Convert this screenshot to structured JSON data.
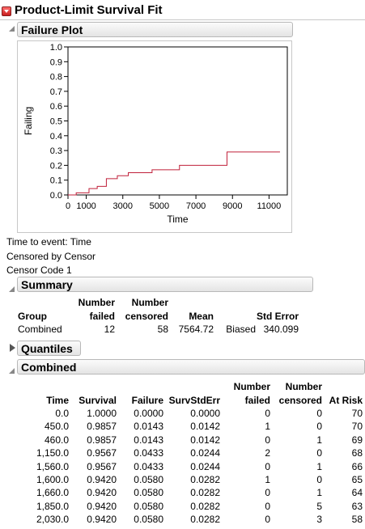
{
  "report": {
    "title": "Product-Limit Survival Fit"
  },
  "failure_plot": {
    "header": "Failure Plot",
    "chart_data": {
      "type": "line",
      "xlabel": "Time",
      "ylabel": "Failing",
      "xlim": [
        0,
        12000
      ],
      "ylim": [
        0,
        1.0
      ],
      "xticks": [
        0,
        1000,
        3000,
        5000,
        7000,
        9000,
        11000
      ],
      "xtick_labels": [
        "0",
        "1000",
        "3000",
        "5000",
        "7000",
        "9000",
        "11000"
      ],
      "yticks": [
        0.0,
        0.1,
        0.2,
        0.3,
        0.4,
        0.5,
        0.6,
        0.7,
        0.8,
        0.9,
        1.0
      ],
      "ytick_labels": [
        "0.0",
        "0.1",
        "0.2",
        "0.3",
        "0.4",
        "0.5",
        "0.6",
        "0.7",
        "0.8",
        "0.9",
        "1.0"
      ],
      "series": [
        {
          "step": true,
          "color": "#c0203a",
          "x": [
            0,
            450,
            1150,
            1600,
            2100,
            2700,
            3300,
            4600,
            6100,
            8700,
            11600
          ],
          "y": [
            0,
            0.0143,
            0.0433,
            0.058,
            0.11,
            0.13,
            0.15,
            0.17,
            0.2,
            0.29,
            0.29
          ]
        }
      ]
    }
  },
  "info": {
    "time_to_event": "Time to event: Time",
    "censored_by": "Censored by Censor",
    "censor_code": "Censor Code 1"
  },
  "summary": {
    "header": "Summary",
    "columns": {
      "group": "Group",
      "number_failed_1": "Number",
      "number_failed_2": "failed",
      "number_censored_1": "Number",
      "number_censored_2": "censored",
      "mean": "Mean",
      "std_error": "Std Error"
    },
    "row": {
      "group": "Combined",
      "failed": "12",
      "censored": "58",
      "mean": "7564.72",
      "biased": "Biased",
      "std_error": "340.099"
    }
  },
  "quantiles": {
    "header": "Quantiles"
  },
  "combined": {
    "header": "Combined",
    "columns": {
      "time": "Time",
      "survival": "Survival",
      "failure": "Failure",
      "survstderr": "SurvStdErr",
      "number_failed_1": "Number",
      "number_failed_2": "failed",
      "number_censored_1": "Number",
      "number_censored_2": "censored",
      "at_risk": "At Risk"
    },
    "rows": [
      {
        "time": "0.0",
        "survival": "1.0000",
        "failure": "0.0000",
        "se": "0.0000",
        "failed": "0",
        "censored": "0",
        "at_risk": "70"
      },
      {
        "time": "450.0",
        "survival": "0.9857",
        "failure": "0.0143",
        "se": "0.0142",
        "failed": "1",
        "censored": "0",
        "at_risk": "70"
      },
      {
        "time": "460.0",
        "survival": "0.9857",
        "failure": "0.0143",
        "se": "0.0142",
        "failed": "0",
        "censored": "1",
        "at_risk": "69"
      },
      {
        "time": "1,150.0",
        "survival": "0.9567",
        "failure": "0.0433",
        "se": "0.0244",
        "failed": "2",
        "censored": "0",
        "at_risk": "68"
      },
      {
        "time": "1,560.0",
        "survival": "0.9567",
        "failure": "0.0433",
        "se": "0.0244",
        "failed": "0",
        "censored": "1",
        "at_risk": "66"
      },
      {
        "time": "1,600.0",
        "survival": "0.9420",
        "failure": "0.0580",
        "se": "0.0282",
        "failed": "1",
        "censored": "0",
        "at_risk": "65"
      },
      {
        "time": "1,660.0",
        "survival": "0.9420",
        "failure": "0.0580",
        "se": "0.0282",
        "failed": "0",
        "censored": "1",
        "at_risk": "64"
      },
      {
        "time": "1,850.0",
        "survival": "0.9420",
        "failure": "0.0580",
        "se": "0.0282",
        "failed": "0",
        "censored": "5",
        "at_risk": "63"
      },
      {
        "time": "2,030.0",
        "survival": "0.9420",
        "failure": "0.0580",
        "se": "0.0282",
        "failed": "0",
        "censored": "3",
        "at_risk": "58"
      }
    ]
  }
}
